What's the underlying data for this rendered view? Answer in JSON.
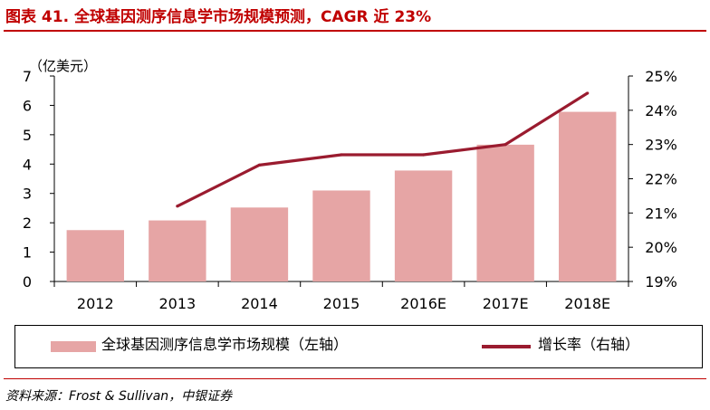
{
  "header": {
    "title": "图表 41. 全球基因测序信息学市场规模预测，CAGR 近 23%"
  },
  "legend": {
    "bars_label": "全球基因测序信息学市场规模（左轴）",
    "line_label": "增长率（右轴）"
  },
  "footer": {
    "source": "资料来源：Frost & Sullivan，中银证券"
  },
  "colors": {
    "bar": "#e6a5a5",
    "line": "#9a1b2f",
    "accent": "#c00000"
  },
  "chart_data": {
    "type": "bar",
    "categories": [
      "2012",
      "2013",
      "2014",
      "2015",
      "2016E",
      "2017E",
      "2018E"
    ],
    "series": [
      {
        "name": "全球基因测序信息学市场规模（左轴）",
        "type": "bar",
        "axis": "left",
        "values": [
          1.75,
          2.08,
          2.52,
          3.1,
          3.78,
          4.66,
          5.78
        ]
      },
      {
        "name": "增长率（右轴）",
        "type": "line",
        "axis": "right",
        "values": [
          null,
          21.2,
          22.4,
          22.7,
          22.7,
          23.0,
          24.5
        ]
      }
    ],
    "y_left": {
      "unit": "（亿美元）",
      "ylim": [
        0,
        7
      ],
      "ticks": [
        "0",
        "1",
        "2",
        "3",
        "4",
        "5",
        "6",
        "7"
      ]
    },
    "y_right": {
      "ylim": [
        19,
        25
      ],
      "ticks": [
        "19%",
        "20%",
        "21%",
        "22%",
        "23%",
        "24%",
        "25%"
      ]
    },
    "grid": false,
    "legend_position": "bottom"
  }
}
